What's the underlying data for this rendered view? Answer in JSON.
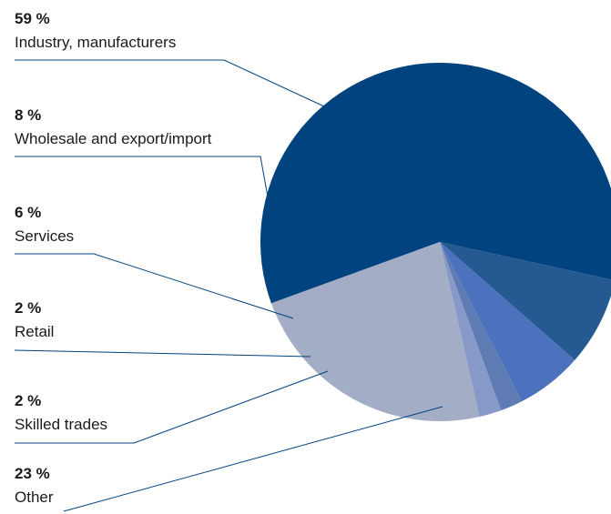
{
  "chart_data": {
    "type": "pie",
    "title": "",
    "start_angle_deg": 200,
    "direction": "clockwise",
    "slices": [
      {
        "label": "Industry, manufacturers",
        "value": 59,
        "value_label": "59 %",
        "color": "#00437f"
      },
      {
        "label": "Wholesale and export/import",
        "value": 8,
        "value_label": "8 %",
        "color": "#245a91"
      },
      {
        "label": "Services",
        "value": 6,
        "value_label": "6 %",
        "color": "#4c72be"
      },
      {
        "label": "Retail",
        "value": 2,
        "value_label": "2 %",
        "color": "#5e7cb3"
      },
      {
        "label": "Skilled trades",
        "value": 2,
        "value_label": "2 %",
        "color": "#8699c8"
      },
      {
        "label": "Other",
        "value": 23,
        "value_label": "23 %",
        "color": "#a4adc6"
      }
    ],
    "leader_line_color": "#00437f"
  }
}
